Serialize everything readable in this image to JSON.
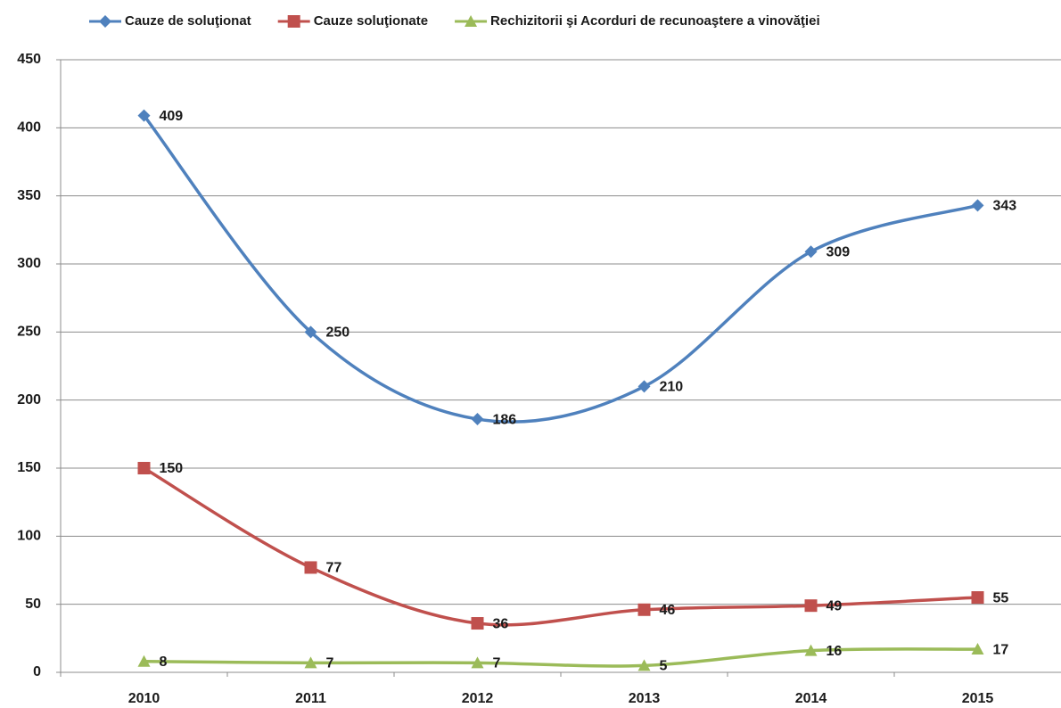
{
  "chart_data": {
    "type": "line",
    "categories": [
      "2010",
      "2011",
      "2012",
      "2013",
      "2014",
      "2015"
    ],
    "series": [
      {
        "name": "Cauze de soluţionat",
        "color": "#4f81bd",
        "marker": "diamond",
        "values": [
          409,
          250,
          186,
          210,
          309,
          343
        ]
      },
      {
        "name": "Cauze soluţionate",
        "color": "#c0504d",
        "marker": "square",
        "values": [
          150,
          77,
          36,
          46,
          49,
          55
        ]
      },
      {
        "name": "Rechizitorii şi Acorduri de recunoaştere a vinovăţiei",
        "color": "#9bbb59",
        "marker": "triangle",
        "values": [
          8,
          7,
          7,
          5,
          16,
          17
        ]
      }
    ],
    "ylim": [
      0,
      450
    ],
    "yticks": [
      0,
      50,
      100,
      150,
      200,
      250,
      300,
      350,
      400,
      450
    ],
    "grid": true,
    "smooth": true,
    "legend": "top",
    "data_labels": true
  }
}
